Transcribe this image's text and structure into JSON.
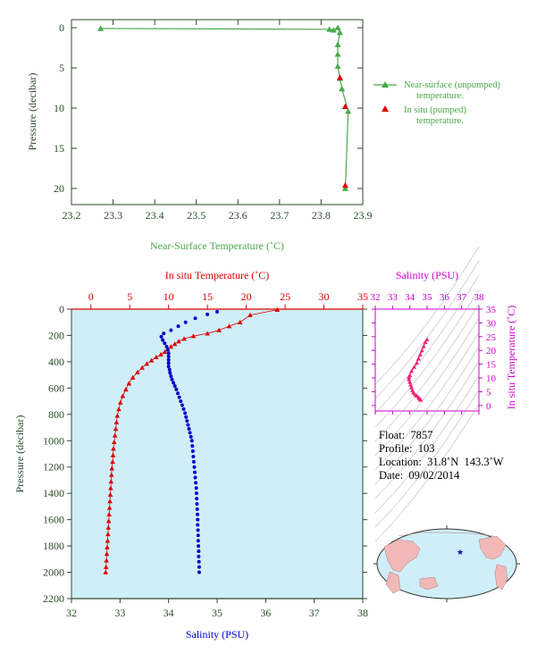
{
  "colors": {
    "near_surface": "#4aa84a",
    "in_situ_red": "#dd0000",
    "salinity_blue": "#0000cc",
    "axis_dark": "#2c4a2c",
    "panel_bg": "#cfeef8",
    "magenta": "#cc00cc",
    "pink_trace": "#ee2277",
    "land": "#f2b8b8",
    "ocean": "#cfeef8"
  },
  "chart_data": [
    {
      "id": "near-surface",
      "type": "line",
      "xlabel": "Near-Surface Temperature (˚C)",
      "ylabel": "Pressure (decibar)",
      "xlim": [
        23.2,
        23.9
      ],
      "ylim": [
        22,
        -1
      ],
      "xticks": [
        "23.2",
        "23.3",
        "23.4",
        "23.5",
        "23.6",
        "23.7",
        "23.8",
        "23.9"
      ],
      "yticks": [
        "0",
        "5",
        "10",
        "15",
        "20"
      ],
      "legend": [
        {
          "label": "Near-surface (unpumped)",
          "label2": "temperature."
        },
        {
          "label": "In situ (pumped)",
          "label2": "temperature."
        }
      ],
      "series": [
        {
          "name": "Near-surface (unpumped) temperature.",
          "points": [
            [
              23.27,
              0.1
            ],
            [
              23.82,
              0.2
            ],
            [
              23.83,
              0.3
            ],
            [
              23.84,
              0.0
            ],
            [
              23.845,
              0.6
            ],
            [
              23.84,
              2.1
            ],
            [
              23.84,
              3.3
            ],
            [
              23.84,
              4.8
            ],
            [
              23.845,
              6.3
            ],
            [
              23.85,
              7.6
            ],
            [
              23.865,
              10.4
            ],
            [
              23.858,
              20.0
            ]
          ]
        },
        {
          "name": "In situ (pumped) temperature.",
          "points": [
            [
              23.845,
              6.2
            ],
            [
              23.858,
              9.8
            ],
            [
              23.858,
              19.6
            ]
          ]
        }
      ]
    },
    {
      "id": "profile",
      "type": "scatter",
      "top_xlabel": "In situ Temperature (˚C)",
      "bottom_xlabel": "Salinity (PSU)",
      "ylabel": "Pressure (decibar)",
      "top_xlim": [
        -2.5,
        35
      ],
      "bottom_xlim": [
        32,
        38
      ],
      "ylim": [
        2200,
        0
      ],
      "top_ticks": [
        "0",
        "5",
        "10",
        "15",
        "20",
        "25",
        "30",
        "35"
      ],
      "bottom_ticks": [
        "32",
        "33",
        "34",
        "35",
        "36",
        "37",
        "38"
      ],
      "yticks": [
        "0",
        "200",
        "400",
        "600",
        "800",
        "1000",
        "1200",
        "1400",
        "1600",
        "1800",
        "2000",
        "2200"
      ],
      "temperature": [
        [
          24.0,
          5
        ],
        [
          20.5,
          45
        ],
        [
          19.2,
          100
        ],
        [
          17.8,
          130
        ],
        [
          16.5,
          160
        ],
        [
          15.0,
          185
        ],
        [
          13.2,
          205
        ],
        [
          12.0,
          225
        ],
        [
          11.3,
          245
        ],
        [
          10.8,
          265
        ],
        [
          10.3,
          285
        ],
        [
          9.9,
          305
        ],
        [
          9.5,
          325
        ],
        [
          9.0,
          345
        ],
        [
          8.4,
          365
        ],
        [
          7.8,
          390
        ],
        [
          7.2,
          415
        ],
        [
          6.6,
          445
        ],
        [
          6.0,
          480
        ],
        [
          5.4,
          520
        ],
        [
          4.9,
          565
        ],
        [
          4.5,
          610
        ],
        [
          4.1,
          660
        ],
        [
          3.8,
          710
        ],
        [
          3.6,
          760
        ],
        [
          3.4,
          810
        ],
        [
          3.3,
          860
        ],
        [
          3.2,
          910
        ],
        [
          3.1,
          960
        ],
        [
          3.0,
          1010
        ],
        [
          2.9,
          1060
        ],
        [
          2.85,
          1110
        ],
        [
          2.8,
          1160
        ],
        [
          2.7,
          1210
        ],
        [
          2.65,
          1260
        ],
        [
          2.6,
          1310
        ],
        [
          2.55,
          1360
        ],
        [
          2.5,
          1410
        ],
        [
          2.45,
          1460
        ],
        [
          2.4,
          1510
        ],
        [
          2.35,
          1560
        ],
        [
          2.3,
          1610
        ],
        [
          2.25,
          1660
        ],
        [
          2.2,
          1710
        ],
        [
          2.15,
          1760
        ],
        [
          2.1,
          1810
        ],
        [
          2.05,
          1860
        ],
        [
          2.0,
          1910
        ],
        [
          1.95,
          1960
        ],
        [
          1.9,
          2000
        ]
      ],
      "salinity": [
        [
          35.0,
          20
        ],
        [
          34.8,
          40
        ],
        [
          34.55,
          70
        ],
        [
          34.35,
          100
        ],
        [
          34.2,
          130
        ],
        [
          34.05,
          160
        ],
        [
          33.9,
          185
        ],
        [
          33.85,
          210
        ],
        [
          33.88,
          235
        ],
        [
          33.92,
          260
        ],
        [
          33.96,
          285
        ],
        [
          33.98,
          310
        ],
        [
          34.0,
          335
        ],
        [
          34.0,
          360
        ],
        [
          34.0,
          385
        ],
        [
          34.0,
          410
        ],
        [
          34.0,
          435
        ],
        [
          34.02,
          460
        ],
        [
          34.03,
          485
        ],
        [
          34.05,
          510
        ],
        [
          34.07,
          535
        ],
        [
          34.1,
          560
        ],
        [
          34.13,
          585
        ],
        [
          34.16,
          610
        ],
        [
          34.19,
          640
        ],
        [
          34.22,
          670
        ],
        [
          34.25,
          700
        ],
        [
          34.28,
          730
        ],
        [
          34.31,
          760
        ],
        [
          34.34,
          790
        ],
        [
          34.36,
          820
        ],
        [
          34.38,
          850
        ],
        [
          34.4,
          880
        ],
        [
          34.42,
          910
        ],
        [
          34.44,
          940
        ],
        [
          34.46,
          970
        ],
        [
          34.48,
          1000
        ],
        [
          34.49,
          1040
        ],
        [
          34.5,
          1080
        ],
        [
          34.51,
          1120
        ],
        [
          34.52,
          1160
        ],
        [
          34.53,
          1200
        ],
        [
          34.54,
          1240
        ],
        [
          34.55,
          1280
        ],
        [
          34.56,
          1320
        ],
        [
          34.57,
          1360
        ],
        [
          34.575,
          1400
        ],
        [
          34.58,
          1440
        ],
        [
          34.585,
          1480
        ],
        [
          34.59,
          1520
        ],
        [
          34.595,
          1560
        ],
        [
          34.6,
          1600
        ],
        [
          34.6,
          1640
        ],
        [
          34.605,
          1680
        ],
        [
          34.61,
          1720
        ],
        [
          34.61,
          1760
        ],
        [
          34.615,
          1800
        ],
        [
          34.62,
          1840
        ],
        [
          34.62,
          1880
        ],
        [
          34.625,
          1920
        ],
        [
          34.63,
          1960
        ],
        [
          34.63,
          2000
        ]
      ]
    },
    {
      "id": "ts-diagram",
      "type": "scatter",
      "top_xlabel": "Salinity (PSU)",
      "right_ylabel": "In situ Temperature (˚C)",
      "xlim": [
        32,
        38
      ],
      "ylim": [
        -2,
        35
      ],
      "xticks": [
        "32",
        "33",
        "34",
        "35",
        "36",
        "37",
        "38"
      ],
      "yticks": [
        "0",
        "5",
        "10",
        "15",
        "20",
        "25",
        "30",
        "35"
      ],
      "points": [
        [
          35.0,
          24.0
        ],
        [
          34.9,
          23.0
        ],
        [
          34.8,
          21.5
        ],
        [
          34.7,
          20.0
        ],
        [
          34.6,
          18.5
        ],
        [
          34.5,
          17.0
        ],
        [
          34.4,
          15.5
        ],
        [
          34.25,
          14.0
        ],
        [
          34.1,
          12.5
        ],
        [
          34.0,
          11.0
        ],
        [
          33.95,
          10.3
        ],
        [
          33.95,
          9.5
        ],
        [
          34.0,
          8.5
        ],
        [
          34.05,
          7.5
        ],
        [
          34.1,
          6.5
        ],
        [
          34.15,
          5.5
        ],
        [
          34.2,
          4.7
        ],
        [
          34.3,
          4.0
        ],
        [
          34.4,
          3.5
        ],
        [
          34.5,
          3.0
        ],
        [
          34.55,
          2.6
        ],
        [
          34.6,
          2.3
        ],
        [
          34.63,
          2.0
        ]
      ]
    }
  ],
  "info": {
    "float": "7857",
    "profile": "103",
    "location": "31.8˚N  143.3˚W",
    "date": "09/02/2014"
  }
}
